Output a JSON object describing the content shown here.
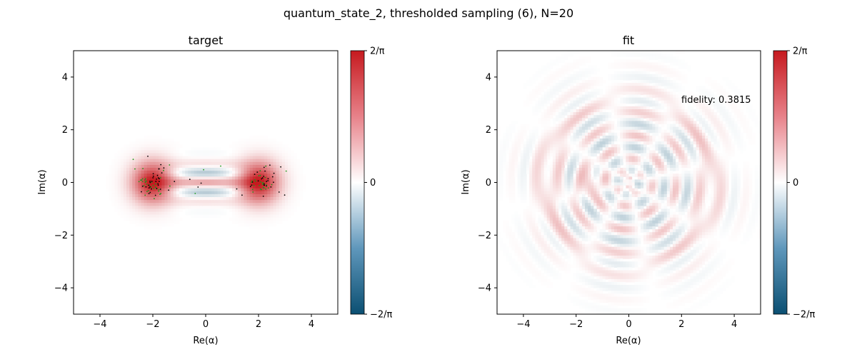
{
  "suptitle": "quantum_state_2, thresholded sampling (6), N=20",
  "colors": {
    "positive": "#c61a1f",
    "negative": "#0b4f72",
    "neutral": "#ffffff",
    "samples_a": "#000000",
    "samples_b": "#1a9a1a"
  },
  "chart_data": [
    {
      "type": "heatmap",
      "subtitle": "target",
      "xlabel": "Re(α)",
      "ylabel": "Im(α)",
      "xlim": [
        -5,
        5
      ],
      "ylim": [
        -5,
        5
      ],
      "xticks": [
        "−4",
        "−2",
        "0",
        "2",
        "4"
      ],
      "yticks": [
        "−4",
        "−2",
        "0",
        "2",
        "4"
      ],
      "xtick_values": [
        -4,
        -2,
        0,
        2,
        4
      ],
      "ytick_values": [
        -4,
        -2,
        0,
        2,
        4
      ],
      "colorbar": {
        "range": [
          -0.6366,
          0.6366
        ],
        "ticks": [
          "2/π",
          "0",
          "−2/π"
        ],
        "tick_values": [
          0.6366,
          0,
          -0.6366
        ]
      },
      "features": [
        {
          "kind": "gaussian-lobe",
          "center": [
            -2,
            0
          ],
          "sigma": 0.55,
          "value": 0.64
        },
        {
          "kind": "gaussian-lobe",
          "center": [
            2,
            0
          ],
          "sigma": 0.55,
          "value": 0.64
        },
        {
          "kind": "interference-fringes",
          "center": [
            0,
            0
          ],
          "fringe_period_im": 0.78,
          "extent_re": 1.2,
          "amplitude": 0.25
        }
      ],
      "samples": "clustered-around-lobes"
    },
    {
      "type": "heatmap",
      "subtitle": "fit",
      "xlabel": "Re(α)",
      "ylabel": "Im(α)",
      "xlim": [
        -5,
        5
      ],
      "ylim": [
        -5,
        5
      ],
      "xticks": [
        "−4",
        "−2",
        "0",
        "2",
        "4"
      ],
      "yticks": [
        "−4",
        "−2",
        "0",
        "2",
        "4"
      ],
      "xtick_values": [
        -4,
        -2,
        0,
        2,
        4
      ],
      "ytick_values": [
        -4,
        -2,
        0,
        2,
        4
      ],
      "colorbar": {
        "range": [
          -0.6366,
          0.6366
        ],
        "ticks": [
          "2/π",
          "0",
          "−2/π"
        ],
        "tick_values": [
          0.6366,
          0,
          -0.6366
        ]
      },
      "annotation": "fidelity: 0.3815",
      "fidelity": 0.3815
    }
  ]
}
